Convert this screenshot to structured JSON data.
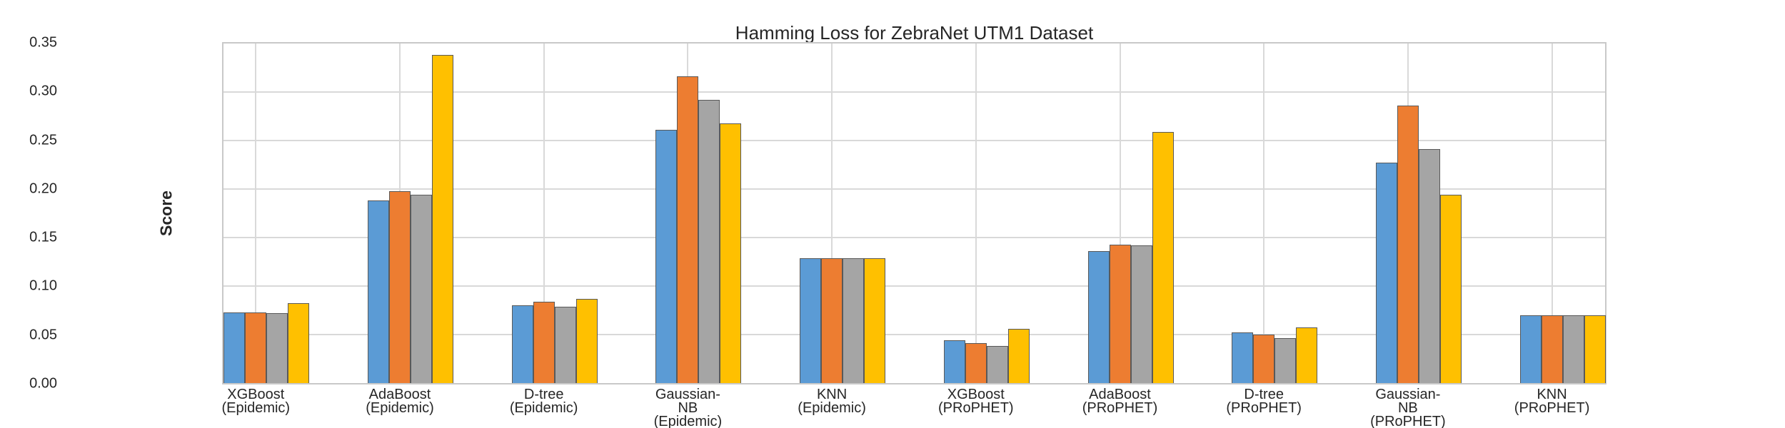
{
  "chart_data": {
    "type": "bar",
    "title": "Hamming Loss for ZebraNet UTM1 Dataset",
    "xlabel": "",
    "ylabel": "Score",
    "ylim": [
      0,
      0.35
    ],
    "ytick_step": 0.05,
    "ytick_labels": [
      "0.00",
      "0.05",
      "0.10",
      "0.15",
      "0.20",
      "0.25",
      "0.30",
      "0.35"
    ],
    "grid": true,
    "legend_position": "none",
    "categories": [
      [
        "XGBoost",
        "(Epidemic)"
      ],
      [
        "AdaBoost",
        "(Epidemic)"
      ],
      [
        "D-tree",
        "(Epidemic)"
      ],
      [
        "Gaussian-",
        "NB",
        "(Epidemic)"
      ],
      [
        "KNN",
        "(Epidemic)"
      ],
      [
        "XGBoost",
        "(PRoPHET)"
      ],
      [
        "AdaBoost",
        "(PRoPHET)"
      ],
      [
        "D-tree",
        "(PRoPHET)"
      ],
      [
        "Gaussian-",
        "NB",
        "(PRoPHET)"
      ],
      [
        "KNN",
        "(PRoPHET)"
      ]
    ],
    "series": [
      {
        "name": "series-blue",
        "color": "#5B9BD5",
        "values": [
          0.073,
          0.188,
          0.08,
          0.261,
          0.129,
          0.044,
          0.136,
          0.052,
          0.227,
          0.07
        ]
      },
      {
        "name": "series-orange",
        "color": "#ED7D31",
        "values": [
          0.073,
          0.198,
          0.084,
          0.316,
          0.129,
          0.041,
          0.143,
          0.05,
          0.286,
          0.07
        ]
      },
      {
        "name": "series-gray",
        "color": "#A5A5A5",
        "values": [
          0.072,
          0.194,
          0.079,
          0.292,
          0.129,
          0.038,
          0.142,
          0.046,
          0.241,
          0.07
        ]
      },
      {
        "name": "series-yellow",
        "color": "#FFC000",
        "values": [
          0.082,
          0.338,
          0.087,
          0.268,
          0.129,
          0.056,
          0.259,
          0.057,
          0.194,
          0.07
        ]
      }
    ],
    "colors": {
      "bar_edge": "#595959",
      "gridline": "#d9d9d9",
      "spine": "#c9c9c9",
      "text": "#262626"
    }
  }
}
